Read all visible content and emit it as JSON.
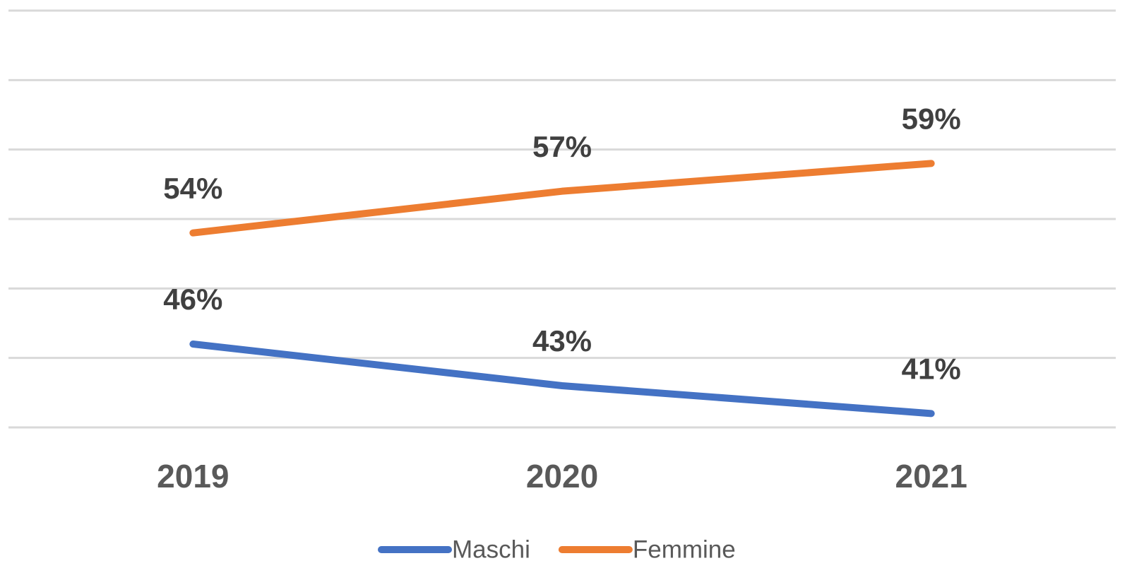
{
  "chart_data": {
    "type": "line",
    "categories": [
      "2019",
      "2020",
      "2021"
    ],
    "series": [
      {
        "name": "Maschi",
        "color": "#4472c4",
        "values": [
          46,
          43,
          41
        ],
        "value_labels": [
          "46%",
          "43%",
          "41%"
        ]
      },
      {
        "name": "Femmine",
        "color": "#ed7d31",
        "values": [
          54,
          57,
          59
        ],
        "value_labels": [
          "54%",
          "57%",
          "59%"
        ]
      }
    ],
    "ylim": [
      40,
      70
    ],
    "yticks": [
      40,
      45,
      50,
      55,
      60,
      65,
      70
    ],
    "grid": true,
    "legend": "bottom"
  }
}
